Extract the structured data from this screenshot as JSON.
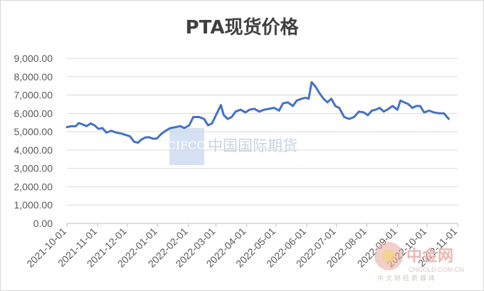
{
  "chart_data": {
    "type": "line",
    "title": "PTA现货价格",
    "xlabel": "",
    "ylabel": "",
    "ylim": [
      0,
      9000
    ],
    "y_ticks": [
      "0.00",
      "1,000.00",
      "2,000.00",
      "3,000.00",
      "4,000.00",
      "5,000.00",
      "6,000.00",
      "7,000.00",
      "8,000.00",
      "9,000.00"
    ],
    "x_ticks": [
      "2021-10-01",
      "2021-11-01",
      "2021-12-01",
      "2022-01-01",
      "2022-02-01",
      "2022-03-01",
      "2022-04-01",
      "2022-05-01",
      "2022-06-01",
      "2022-07-01",
      "2022-08-01",
      "2022-09-01",
      "2022-10-01",
      "2022-11-01"
    ],
    "grid": true,
    "legend": "none",
    "line_color": "#4472c4",
    "series": [
      {
        "points": [
          [
            "2021-10-01",
            5250
          ],
          [
            "2021-10-05",
            5300
          ],
          [
            "2021-10-10",
            5300
          ],
          [
            "2021-10-13",
            5470
          ],
          [
            "2021-10-17",
            5400
          ],
          [
            "2021-10-21",
            5300
          ],
          [
            "2021-10-25",
            5450
          ],
          [
            "2021-10-29",
            5350
          ],
          [
            "2021-11-02",
            5150
          ],
          [
            "2021-11-06",
            5200
          ],
          [
            "2021-11-10",
            4950
          ],
          [
            "2021-11-15",
            5050
          ],
          [
            "2021-11-20",
            4950
          ],
          [
            "2021-11-25",
            4900
          ],
          [
            "2021-11-30",
            4820
          ],
          [
            "2021-12-04",
            4750
          ],
          [
            "2021-12-08",
            4450
          ],
          [
            "2021-12-12",
            4400
          ],
          [
            "2021-12-15",
            4550
          ],
          [
            "2021-12-19",
            4680
          ],
          [
            "2021-12-23",
            4700
          ],
          [
            "2021-12-27",
            4620
          ],
          [
            "2021-12-31",
            4620
          ],
          [
            "2022-01-04",
            4850
          ],
          [
            "2022-01-09",
            5050
          ],
          [
            "2022-01-14",
            5200
          ],
          [
            "2022-01-19",
            5250
          ],
          [
            "2022-01-24",
            5300
          ],
          [
            "2022-01-28",
            5200
          ],
          [
            "2022-02-02",
            5350
          ],
          [
            "2022-02-06",
            5800
          ],
          [
            "2022-02-12",
            5800
          ],
          [
            "2022-02-17",
            5700
          ],
          [
            "2022-02-21",
            5350
          ],
          [
            "2022-02-25",
            5450
          ],
          [
            "2022-03-02",
            6000
          ],
          [
            "2022-03-06",
            6450
          ],
          [
            "2022-03-09",
            5900
          ],
          [
            "2022-03-13",
            5700
          ],
          [
            "2022-03-17",
            5800
          ],
          [
            "2022-03-21",
            6100
          ],
          [
            "2022-03-26",
            6200
          ],
          [
            "2022-03-31",
            6050
          ],
          [
            "2022-04-04",
            6200
          ],
          [
            "2022-04-09",
            6250
          ],
          [
            "2022-04-14",
            6100
          ],
          [
            "2022-04-19",
            6200
          ],
          [
            "2022-04-24",
            6250
          ],
          [
            "2022-04-29",
            6300
          ],
          [
            "2022-05-04",
            6150
          ],
          [
            "2022-05-08",
            6550
          ],
          [
            "2022-05-13",
            6600
          ],
          [
            "2022-05-18",
            6400
          ],
          [
            "2022-05-22",
            6700
          ],
          [
            "2022-05-27",
            6800
          ],
          [
            "2022-05-31",
            6850
          ],
          [
            "2022-06-03",
            6800
          ],
          [
            "2022-06-06",
            7700
          ],
          [
            "2022-06-10",
            7450
          ],
          [
            "2022-06-14",
            7100
          ],
          [
            "2022-06-18",
            6800
          ],
          [
            "2022-06-22",
            6600
          ],
          [
            "2022-06-26",
            6800
          ],
          [
            "2022-06-30",
            6400
          ],
          [
            "2022-07-04",
            6300
          ],
          [
            "2022-07-09",
            5800
          ],
          [
            "2022-07-14",
            5700
          ],
          [
            "2022-07-19",
            5800
          ],
          [
            "2022-07-24",
            6100
          ],
          [
            "2022-07-29",
            6050
          ],
          [
            "2022-08-02",
            5900
          ],
          [
            "2022-08-06",
            6150
          ],
          [
            "2022-08-10",
            6200
          ],
          [
            "2022-08-14",
            6300
          ],
          [
            "2022-08-18",
            6100
          ],
          [
            "2022-08-23",
            6250
          ],
          [
            "2022-08-27",
            6400
          ],
          [
            "2022-09-01",
            6200
          ],
          [
            "2022-09-04",
            6700
          ],
          [
            "2022-09-08",
            6600
          ],
          [
            "2022-09-12",
            6500
          ],
          [
            "2022-09-16",
            6300
          ],
          [
            "2022-09-20",
            6400
          ],
          [
            "2022-09-24",
            6400
          ],
          [
            "2022-09-28",
            6050
          ],
          [
            "2022-10-03",
            6150
          ],
          [
            "2022-10-08",
            6050
          ],
          [
            "2022-10-13",
            6000
          ],
          [
            "2022-10-18",
            6000
          ],
          [
            "2022-10-23",
            5700
          ]
        ]
      }
    ]
  },
  "watermarks": {
    "cifco_logo": "CIFCO",
    "cifco_name": "中国国际期货",
    "site_logo_name": "中金网",
    "site_logo_sub": "中文财经新媒体",
    "site_url": "CNGOLD.COM.CN"
  }
}
